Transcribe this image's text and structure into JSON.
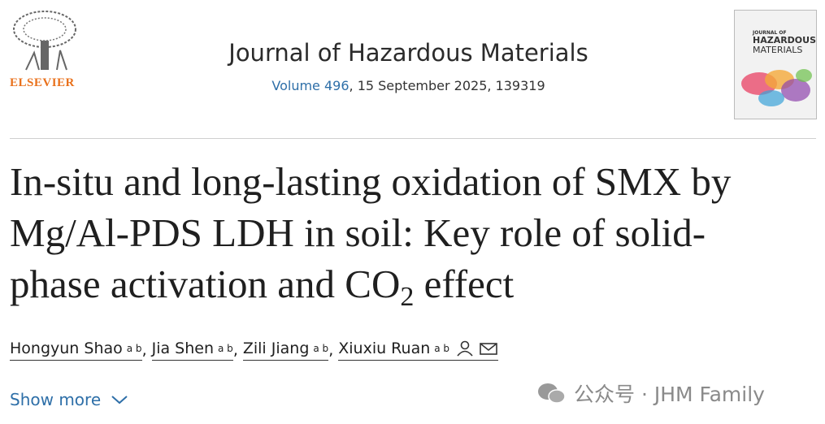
{
  "header": {
    "publisher": "ELSEVIER",
    "journal": "Journal of Hazardous Materials",
    "volume_link": "Volume 496",
    "citation": ", 15 September 2025, 139319",
    "cover": {
      "line_1": "JOURNAL OF",
      "line_2": "HAZARDOUS",
      "line_3": "MATERIALS"
    }
  },
  "title": {
    "line_1": "In-situ and long-lasting oxidation of SMX by",
    "line_2": "Mg/Al-PDS LDH in soil: Key role of solid-",
    "line_3": "phase activation and CO",
    "subscript": "2",
    "end": " effect"
  },
  "authors": {
    "separator": ",",
    "list": [
      {
        "name": "Hongyun Shao",
        "affiliations": "a b"
      },
      {
        "name": "Jia Shen",
        "affiliations": "a b"
      },
      {
        "name": "Zili Jiang",
        "affiliations": "a b"
      },
      {
        "name": "Xiuxiu Ruan",
        "affiliations": "a b"
      }
    ]
  },
  "show_more": "Show more",
  "watermark": "公众号 · JHM Family"
}
